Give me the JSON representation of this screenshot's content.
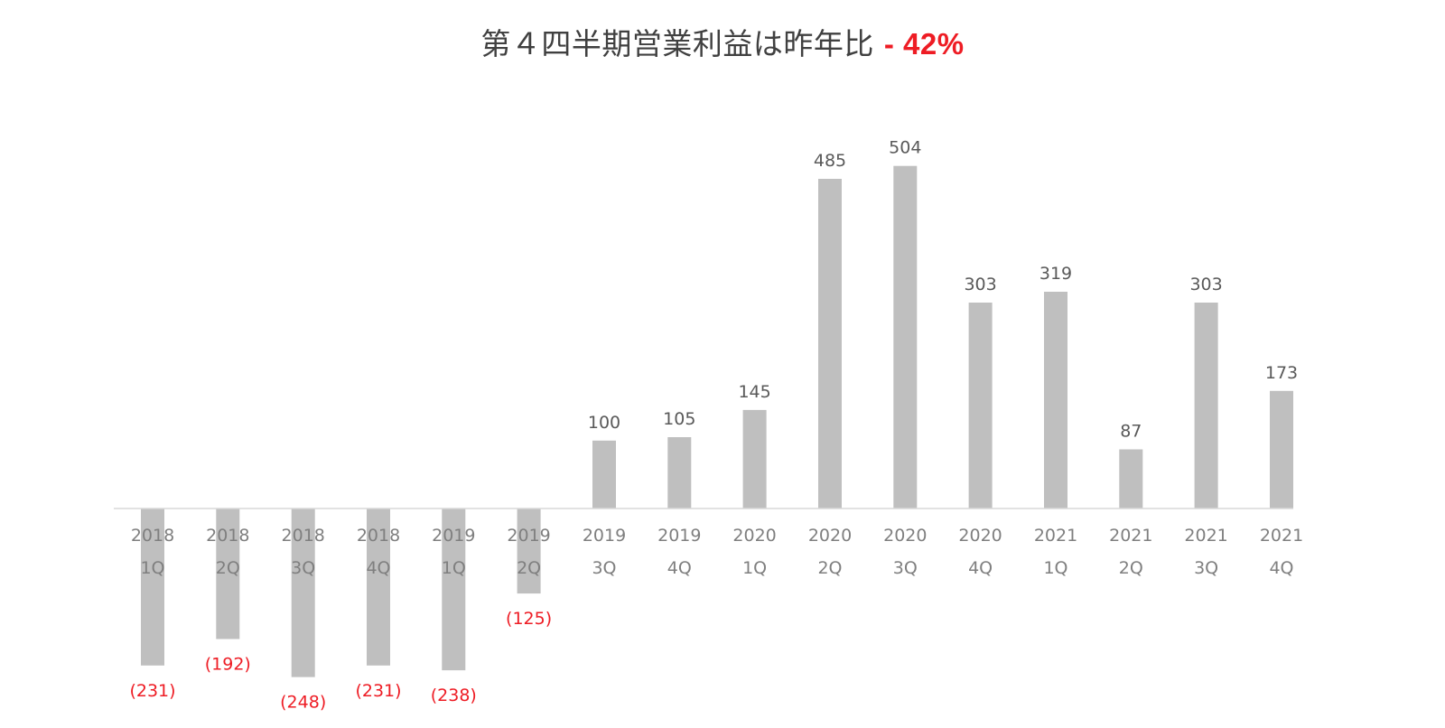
{
  "chart_data": {
    "type": "bar",
    "title": "第４四半期営業利益は昨年比",
    "title_highlight": "- 42%",
    "xlabel": "",
    "ylabel": "",
    "categories": [
      [
        "2018",
        "1Q"
      ],
      [
        "2018",
        "2Q"
      ],
      [
        "2018",
        "3Q"
      ],
      [
        "2018",
        "4Q"
      ],
      [
        "2019",
        "1Q"
      ],
      [
        "2019",
        "2Q"
      ],
      [
        "2019",
        "3Q"
      ],
      [
        "2019",
        "4Q"
      ],
      [
        "2020",
        "1Q"
      ],
      [
        "2020",
        "2Q"
      ],
      [
        "2020",
        "3Q"
      ],
      [
        "2020",
        "4Q"
      ],
      [
        "2021",
        "1Q"
      ],
      [
        "2021",
        "2Q"
      ],
      [
        "2021",
        "3Q"
      ],
      [
        "2021",
        "4Q"
      ]
    ],
    "values": [
      -231,
      -192,
      -248,
      -231,
      -238,
      -125,
      100,
      105,
      145,
      485,
      504,
      303,
      319,
      87,
      303,
      173
    ],
    "value_labels": [
      "(231)",
      "(192)",
      "(248)",
      "(231)",
      "(238)",
      "(125)",
      "100",
      "105",
      "145",
      "485",
      "504",
      "303",
      "319",
      "87",
      "303",
      "173"
    ],
    "ylim": [
      -280,
      560
    ],
    "grid": false,
    "legend": "none",
    "colors": {
      "bar": "#bfbfbf",
      "axis": "#d9d9d9",
      "positive_label": "#595959",
      "negative_label": "#ee1c24",
      "tick_label": "#7f7f7f",
      "title": "#404040",
      "title_highlight": "#ee1c24"
    }
  }
}
